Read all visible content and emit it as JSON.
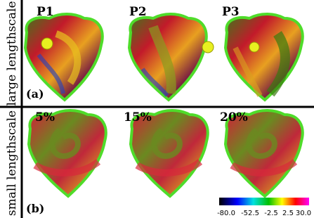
{
  "side_labels": {
    "top": "large lengthscale",
    "bottom": "small lengthscale"
  },
  "panels": [
    {
      "tag": "(a)",
      "items": [
        "P1",
        "P2",
        "P3"
      ]
    },
    {
      "tag": "(b)",
      "items": [
        "5%",
        "15%",
        "20%"
      ]
    }
  ],
  "colorbar": {
    "ticks": [
      "-80.0",
      "-52.5",
      "-2.5",
      "2.5",
      "30.0"
    ]
  }
}
